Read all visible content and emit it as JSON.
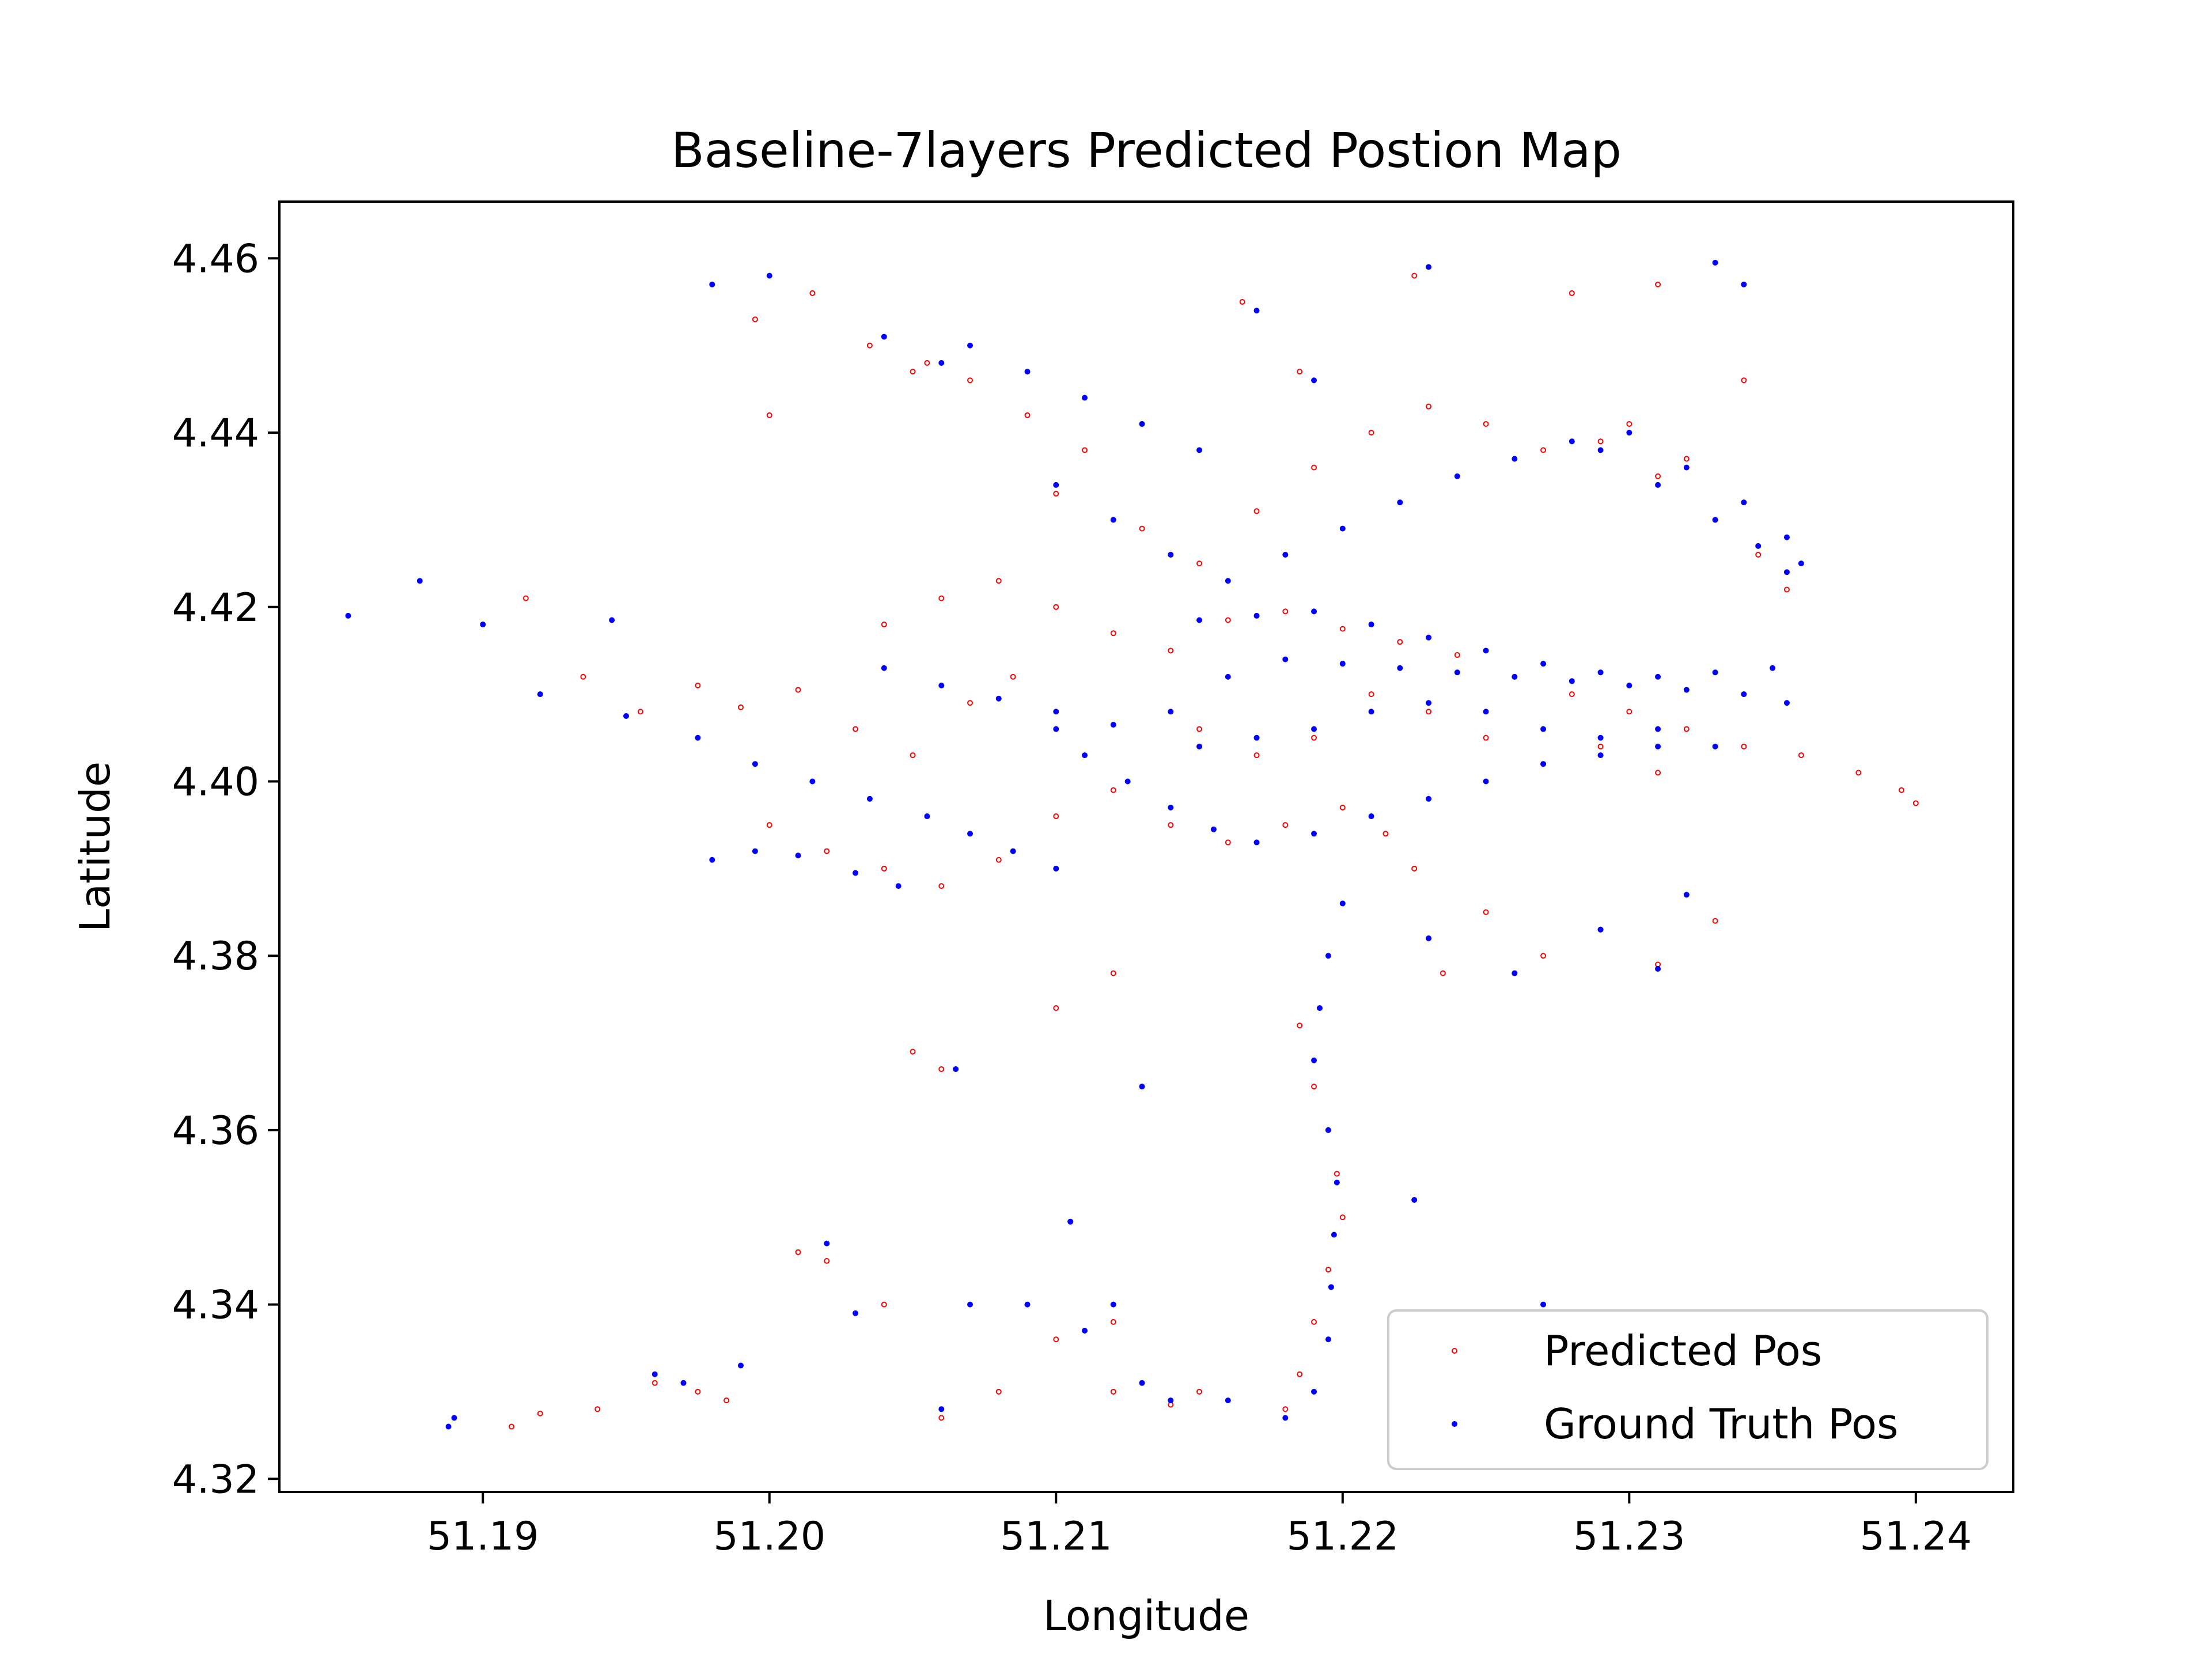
{
  "chart_data": {
    "type": "scatter",
    "title": "Baseline-7layers Predicted Postion Map",
    "xlabel": "Longitude",
    "ylabel": "Latitude",
    "xlim": [
      51.1829,
      51.2434
    ],
    "ylim": [
      4.3185,
      4.4665
    ],
    "xticks": [
      51.19,
      51.2,
      51.21,
      51.22,
      51.23,
      51.24
    ],
    "xtick_labels": [
      "51.19",
      "51.20",
      "51.21",
      "51.22",
      "51.23",
      "51.24"
    ],
    "yticks": [
      4.32,
      4.34,
      4.36,
      4.38,
      4.4,
      4.42,
      4.44,
      4.46
    ],
    "ytick_labels": [
      "4.32",
      "4.34",
      "4.36",
      "4.38",
      "4.40",
      "4.42",
      "4.44",
      "4.46"
    ],
    "grid": false,
    "legend": "lower-right",
    "series": [
      {
        "name": "Predicted Pos",
        "color": "#ff0000",
        "marker": "hollow-circle",
        "points": [
          [
            51.1915,
            4.421
          ],
          [
            51.1935,
            4.412
          ],
          [
            51.1955,
            4.408
          ],
          [
            51.1975,
            4.411
          ],
          [
            51.199,
            4.4085
          ],
          [
            51.201,
            4.4105
          ],
          [
            51.203,
            4.406
          ],
          [
            51.205,
            4.403
          ],
          [
            51.207,
            4.409
          ],
          [
            51.2085,
            4.412
          ],
          [
            51.204,
            4.418
          ],
          [
            51.206,
            4.421
          ],
          [
            51.208,
            4.423
          ],
          [
            51.21,
            4.42
          ],
          [
            51.212,
            4.417
          ],
          [
            51.214,
            4.415
          ],
          [
            51.216,
            4.4185
          ],
          [
            51.218,
            4.4195
          ],
          [
            51.22,
            4.4175
          ],
          [
            51.222,
            4.416
          ],
          [
            51.224,
            4.4145
          ],
          [
            51.226,
            4.412
          ],
          [
            51.228,
            4.41
          ],
          [
            51.23,
            4.408
          ],
          [
            51.232,
            4.406
          ],
          [
            51.234,
            4.404
          ],
          [
            51.236,
            4.403
          ],
          [
            51.238,
            4.401
          ],
          [
            51.2395,
            4.399
          ],
          [
            51.24,
            4.3975
          ],
          [
            51.205,
            4.447
          ],
          [
            51.207,
            4.446
          ],
          [
            51.209,
            4.442
          ],
          [
            51.211,
            4.438
          ],
          [
            51.21,
            4.433
          ],
          [
            51.213,
            4.429
          ],
          [
            51.215,
            4.425
          ],
          [
            51.217,
            4.431
          ],
          [
            51.219,
            4.436
          ],
          [
            51.221,
            4.44
          ],
          [
            51.223,
            4.443
          ],
          [
            51.225,
            4.441
          ],
          [
            51.227,
            4.438
          ],
          [
            51.229,
            4.439
          ],
          [
            51.231,
            4.435
          ],
          [
            51.233,
            4.43
          ],
          [
            51.2345,
            4.426
          ],
          [
            51.2355,
            4.422
          ],
          [
            51.23,
            4.441
          ],
          [
            51.232,
            4.437
          ],
          [
            51.2,
            4.395
          ],
          [
            51.202,
            4.392
          ],
          [
            51.204,
            4.39
          ],
          [
            51.206,
            4.388
          ],
          [
            51.208,
            4.391
          ],
          [
            51.21,
            4.396
          ],
          [
            51.212,
            4.399
          ],
          [
            51.214,
            4.395
          ],
          [
            51.216,
            4.393
          ],
          [
            51.218,
            4.395
          ],
          [
            51.22,
            4.397
          ],
          [
            51.2215,
            4.394
          ],
          [
            51.2225,
            4.39
          ],
          [
            51.225,
            4.385
          ],
          [
            51.227,
            4.38
          ],
          [
            51.229,
            4.383
          ],
          [
            51.231,
            4.379
          ],
          [
            51.233,
            4.384
          ],
          [
            51.2235,
            4.378
          ],
          [
            51.226,
            4.378
          ],
          [
            51.2185,
            4.372
          ],
          [
            51.219,
            4.365
          ],
          [
            51.2195,
            4.36
          ],
          [
            51.2198,
            4.355
          ],
          [
            51.22,
            4.35
          ],
          [
            51.2195,
            4.344
          ],
          [
            51.219,
            4.338
          ],
          [
            51.2185,
            4.332
          ],
          [
            51.218,
            4.328
          ],
          [
            51.215,
            4.33
          ],
          [
            51.212,
            4.338
          ],
          [
            51.21,
            4.336
          ],
          [
            51.208,
            4.33
          ],
          [
            51.206,
            4.327
          ],
          [
            51.204,
            4.34
          ],
          [
            51.202,
            4.345
          ],
          [
            51.201,
            4.346
          ],
          [
            51.1975,
            4.33
          ],
          [
            51.196,
            4.331
          ],
          [
            51.194,
            4.328
          ],
          [
            51.192,
            4.3275
          ],
          [
            51.191,
            4.326
          ],
          [
            51.1985,
            4.329
          ],
          [
            51.212,
            4.33
          ],
          [
            51.214,
            4.3285
          ],
          [
            51.2105,
            4.3495
          ],
          [
            51.206,
            4.367
          ],
          [
            51.205,
            4.369
          ],
          [
            51.21,
            4.374
          ],
          [
            51.212,
            4.378
          ],
          [
            51.215,
            4.406
          ],
          [
            51.217,
            4.403
          ],
          [
            51.219,
            4.405
          ],
          [
            51.221,
            4.41
          ],
          [
            51.223,
            4.408
          ],
          [
            51.225,
            4.405
          ],
          [
            51.227,
            4.402
          ],
          [
            51.229,
            4.404
          ],
          [
            51.231,
            4.401
          ],
          [
            51.2,
            4.442
          ],
          [
            51.1995,
            4.453
          ],
          [
            51.2015,
            4.456
          ],
          [
            51.2035,
            4.45
          ],
          [
            51.2055,
            4.448
          ],
          [
            51.2165,
            4.455
          ],
          [
            51.2185,
            4.447
          ],
          [
            51.2225,
            4.458
          ],
          [
            51.228,
            4.456
          ],
          [
            51.231,
            4.457
          ],
          [
            51.234,
            4.446
          ]
        ]
      },
      {
        "name": "Ground Truth Pos",
        "color": "#0000ff",
        "marker": "dot",
        "points": [
          [
            51.1853,
            4.419
          ],
          [
            51.1878,
            4.423
          ],
          [
            51.19,
            4.418
          ],
          [
            51.192,
            4.41
          ],
          [
            51.1945,
            4.4185
          ],
          [
            51.195,
            4.4075
          ],
          [
            51.1975,
            4.405
          ],
          [
            51.1995,
            4.402
          ],
          [
            51.2015,
            4.4
          ],
          [
            51.2035,
            4.398
          ],
          [
            51.2055,
            4.396
          ],
          [
            51.207,
            4.394
          ],
          [
            51.2085,
            4.392
          ],
          [
            51.21,
            4.39
          ],
          [
            51.2045,
            4.388
          ],
          [
            51.203,
            4.3895
          ],
          [
            51.201,
            4.3915
          ],
          [
            51.1995,
            4.392
          ],
          [
            51.198,
            4.391
          ],
          [
            51.204,
            4.413
          ],
          [
            51.206,
            4.411
          ],
          [
            51.208,
            4.4095
          ],
          [
            51.21,
            4.408
          ],
          [
            51.212,
            4.4065
          ],
          [
            51.214,
            4.408
          ],
          [
            51.216,
            4.412
          ],
          [
            51.218,
            4.414
          ],
          [
            51.22,
            4.4135
          ],
          [
            51.222,
            4.413
          ],
          [
            51.224,
            4.4125
          ],
          [
            51.226,
            4.412
          ],
          [
            51.228,
            4.4115
          ],
          [
            51.23,
            4.411
          ],
          [
            51.232,
            4.4105
          ],
          [
            51.234,
            4.41
          ],
          [
            51.2355,
            4.409
          ],
          [
            51.215,
            4.4185
          ],
          [
            51.217,
            4.419
          ],
          [
            51.219,
            4.4195
          ],
          [
            51.221,
            4.418
          ],
          [
            51.223,
            4.4165
          ],
          [
            51.225,
            4.415
          ],
          [
            51.227,
            4.4135
          ],
          [
            51.229,
            4.4125
          ],
          [
            51.231,
            4.412
          ],
          [
            51.233,
            4.4125
          ],
          [
            51.235,
            4.413
          ],
          [
            51.21,
            4.406
          ],
          [
            51.211,
            4.403
          ],
          [
            51.2125,
            4.4
          ],
          [
            51.214,
            4.397
          ],
          [
            51.2155,
            4.3945
          ],
          [
            51.217,
            4.393
          ],
          [
            51.219,
            4.394
          ],
          [
            51.221,
            4.396
          ],
          [
            51.223,
            4.398
          ],
          [
            51.225,
            4.4
          ],
          [
            51.227,
            4.402
          ],
          [
            51.229,
            4.403
          ],
          [
            51.231,
            4.404
          ],
          [
            51.233,
            4.404
          ],
          [
            51.215,
            4.404
          ],
          [
            51.217,
            4.405
          ],
          [
            51.219,
            4.406
          ],
          [
            51.221,
            4.408
          ],
          [
            51.223,
            4.409
          ],
          [
            51.225,
            4.408
          ],
          [
            51.227,
            4.406
          ],
          [
            51.229,
            4.405
          ],
          [
            51.231,
            4.406
          ],
          [
            51.207,
            4.45
          ],
          [
            51.209,
            4.447
          ],
          [
            51.211,
            4.444
          ],
          [
            51.213,
            4.441
          ],
          [
            51.215,
            4.438
          ],
          [
            51.21,
            4.434
          ],
          [
            51.212,
            4.43
          ],
          [
            51.214,
            4.426
          ],
          [
            51.216,
            4.423
          ],
          [
            51.218,
            4.426
          ],
          [
            51.22,
            4.429
          ],
          [
            51.222,
            4.432
          ],
          [
            51.224,
            4.435
          ],
          [
            51.226,
            4.437
          ],
          [
            51.228,
            4.439
          ],
          [
            51.23,
            4.44
          ],
          [
            51.232,
            4.436
          ],
          [
            51.234,
            4.432
          ],
          [
            51.2355,
            4.428
          ],
          [
            51.236,
            4.425
          ],
          [
            51.229,
            4.438
          ],
          [
            51.231,
            4.434
          ],
          [
            51.233,
            4.43
          ],
          [
            51.2345,
            4.427
          ],
          [
            51.2355,
            4.424
          ],
          [
            51.198,
            4.457
          ],
          [
            51.2,
            4.458
          ],
          [
            51.204,
            4.451
          ],
          [
            51.206,
            4.448
          ],
          [
            51.217,
            4.454
          ],
          [
            51.219,
            4.446
          ],
          [
            51.223,
            4.459
          ],
          [
            51.233,
            4.4595
          ],
          [
            51.234,
            4.457
          ],
          [
            51.22,
            4.386
          ],
          [
            51.223,
            4.382
          ],
          [
            51.226,
            4.378
          ],
          [
            51.229,
            4.383
          ],
          [
            51.231,
            4.3785
          ],
          [
            51.232,
            4.387
          ],
          [
            51.2195,
            4.38
          ],
          [
            51.2192,
            4.374
          ],
          [
            51.219,
            4.368
          ],
          [
            51.2195,
            4.36
          ],
          [
            51.2198,
            4.354
          ],
          [
            51.2197,
            4.348
          ],
          [
            51.2196,
            4.342
          ],
          [
            51.2195,
            4.336
          ],
          [
            51.219,
            4.33
          ],
          [
            51.218,
            4.327
          ],
          [
            51.216,
            4.329
          ],
          [
            51.213,
            4.331
          ],
          [
            51.211,
            4.337
          ],
          [
            51.209,
            4.34
          ],
          [
            51.207,
            4.34
          ],
          [
            51.206,
            4.328
          ],
          [
            51.203,
            4.339
          ],
          [
            51.202,
            4.347
          ],
          [
            51.199,
            4.333
          ],
          [
            51.197,
            4.331
          ],
          [
            51.196,
            4.332
          ],
          [
            51.189,
            4.327
          ],
          [
            51.1888,
            4.326
          ],
          [
            51.212,
            4.34
          ],
          [
            51.214,
            4.329
          ],
          [
            51.2105,
            4.3495
          ],
          [
            51.2065,
            4.367
          ],
          [
            51.213,
            4.365
          ],
          [
            51.2225,
            4.352
          ],
          [
            51.227,
            4.34
          ]
        ]
      }
    ]
  }
}
